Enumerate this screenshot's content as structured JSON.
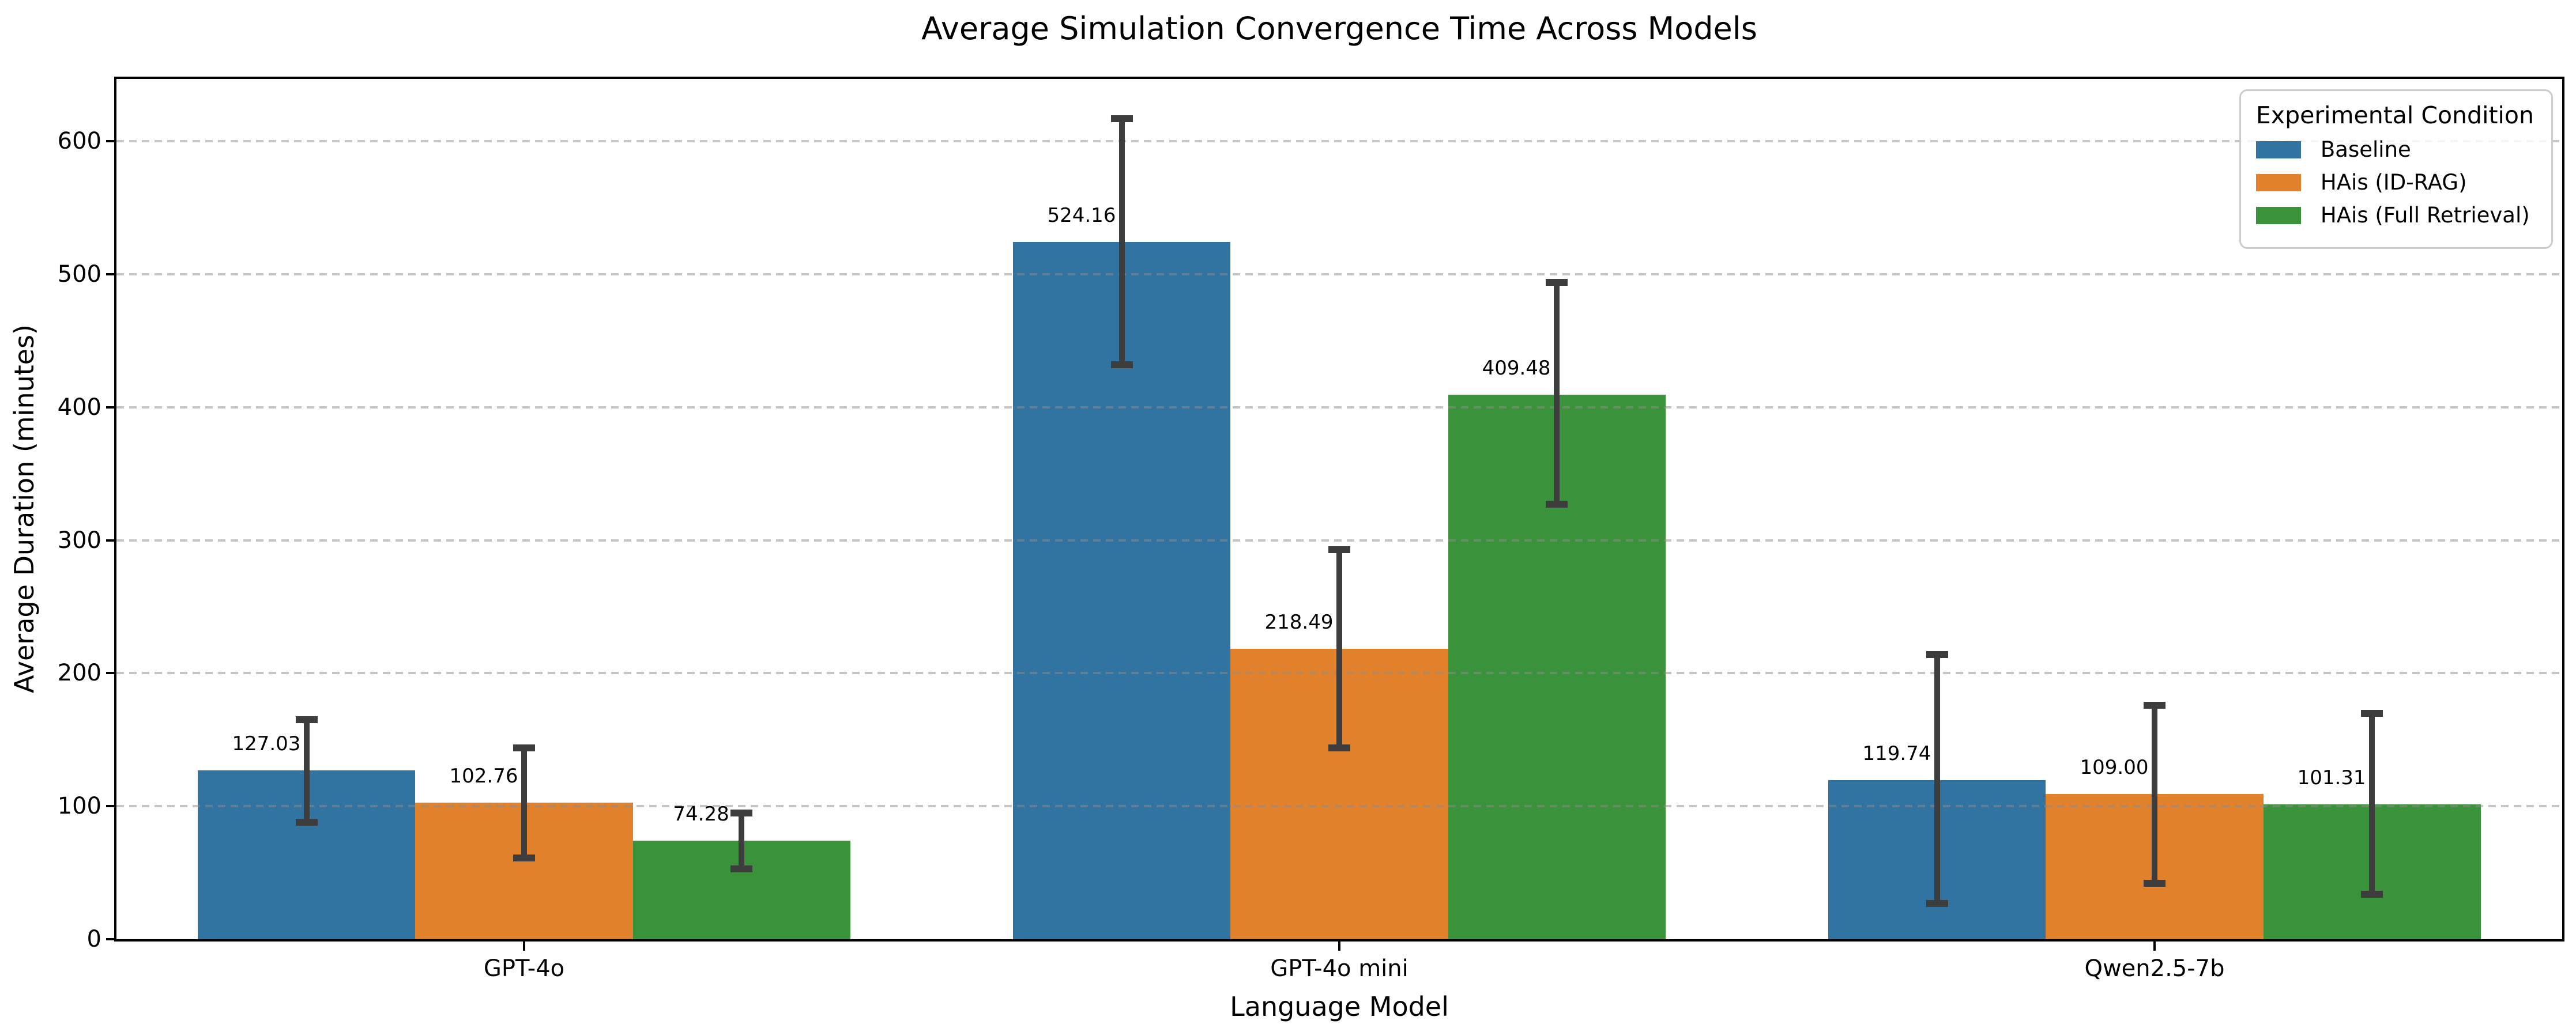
{
  "chart_data": {
    "type": "bar",
    "title": "Average Simulation Convergence Time Across Models",
    "xlabel": "Language Model",
    "ylabel": "Average Duration (minutes)",
    "categories": [
      "GPT-4o",
      "GPT-4o mini",
      "Qwen2.5-7b"
    ],
    "series": [
      {
        "name": "Baseline",
        "color": "#3274a1",
        "values": [
          127.03,
          524.16,
          119.74
        ],
        "err_low": [
          88,
          432,
          27
        ],
        "err_high": [
          165,
          617,
          214
        ]
      },
      {
        "name": "HAis (ID-RAG)",
        "color": "#e1812c",
        "values": [
          102.76,
          218.49,
          109.0
        ],
        "err_low": [
          61,
          144,
          42
        ],
        "err_high": [
          144,
          293,
          176
        ]
      },
      {
        "name": "HAis (Full Retrieval)",
        "color": "#3a923a",
        "values": [
          74.28,
          409.48,
          101.31
        ],
        "err_low": [
          53,
          327,
          34
        ],
        "err_high": [
          95,
          494,
          170
        ]
      }
    ],
    "value_labels": [
      [
        "127.03",
        "524.16",
        "119.74"
      ],
      [
        "102.76",
        "218.49",
        "109.00"
      ],
      [
        "74.28",
        "409.48",
        "101.31"
      ]
    ],
    "ylim": [
      0,
      647
    ],
    "yticks": [
      0,
      100,
      200,
      300,
      400,
      500,
      600
    ],
    "grid": {
      "axis": "y",
      "style": "dashed",
      "color": "#c9c9c9"
    },
    "legend": {
      "title": "Experimental Condition",
      "position": "upper right"
    },
    "errorbar_color": "#3d3d3d"
  }
}
